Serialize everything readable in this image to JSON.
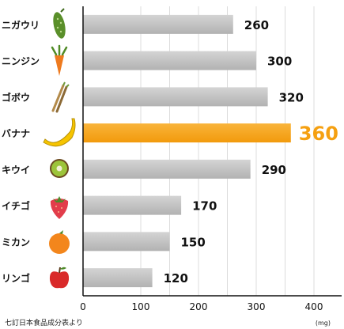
{
  "chart_data": {
    "type": "bar",
    "orientation": "horizontal",
    "categories": [
      "ニガウリ",
      "ニンジン",
      "ゴボウ",
      "バナナ",
      "キウイ",
      "イチゴ",
      "ミカン",
      "リンゴ"
    ],
    "values": [
      260,
      300,
      320,
      360,
      290,
      170,
      150,
      120
    ],
    "value_labels": [
      "260",
      "300",
      "320",
      "360",
      "290",
      "170",
      "150",
      "120"
    ],
    "category_icons": [
      "cucumber-icon",
      "carrot-icon",
      "burdock-icon",
      "banana-icon",
      "kiwi-icon",
      "strawberry-icon",
      "mandarin-icon",
      "apple-icon"
    ],
    "highlight_index": 3,
    "xlim": [
      0,
      400
    ],
    "xticks": [
      "0",
      "100",
      "200",
      "300",
      "400"
    ],
    "unit": "(mg)",
    "source": "七訂日本食品成分表より",
    "grid": true,
    "colors": {
      "bar": "#c4c4c4",
      "bar_shade": "#a9a9a9",
      "highlight": "#f5a011",
      "highlight_shade": "#f7b530",
      "grid": "#dcdcdc",
      "axis": "#111111"
    }
  }
}
